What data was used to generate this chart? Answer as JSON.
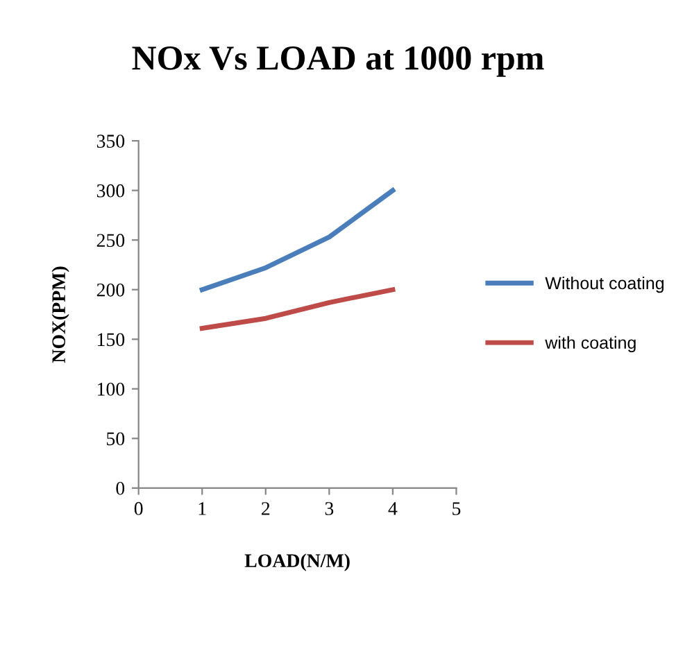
{
  "chart_data": {
    "type": "line",
    "title": "NOx Vs LOAD at 1000 rpm",
    "xlabel": "LOAD(N/M)",
    "ylabel": "NOX(PPM)",
    "x": [
      1,
      2,
      3,
      4
    ],
    "series": [
      {
        "name": "Without coating",
        "color": "#4a7ebb",
        "values": [
          200,
          222,
          253,
          300
        ]
      },
      {
        "name": "with coating",
        "color": "#be4b48",
        "values": [
          161,
          171,
          187,
          200
        ]
      }
    ],
    "xlim": [
      0,
      5
    ],
    "xticks": [
      0,
      1,
      2,
      3,
      4,
      5
    ],
    "ylim": [
      0,
      350
    ],
    "yticks": [
      0,
      50,
      100,
      150,
      200,
      250,
      300,
      350
    ],
    "grid": false,
    "legend": "right",
    "marker": "none",
    "line_style": "solid"
  }
}
